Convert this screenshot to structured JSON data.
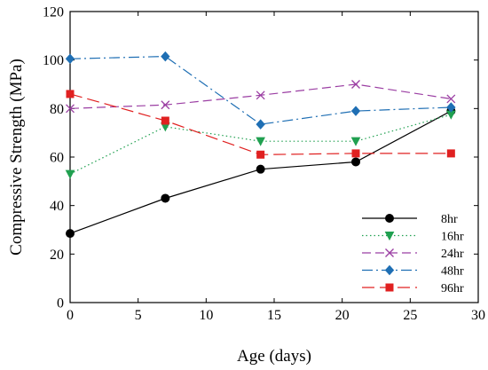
{
  "chart_data": {
    "type": "line",
    "xlabel": "Age (days)",
    "ylabel": "Compressive Strength (MPa)",
    "xlim": [
      0,
      30
    ],
    "ylim": [
      0,
      120
    ],
    "xticks": [
      0,
      5,
      10,
      15,
      20,
      25,
      30
    ],
    "yticks": [
      0,
      20,
      40,
      60,
      80,
      100,
      120
    ],
    "grid": false,
    "legend_position": "bottom-right",
    "x": [
      0,
      7,
      14,
      21,
      28
    ],
    "series": [
      {
        "name": "8hr",
        "values": [
          28.5,
          43,
          55,
          58,
          79
        ],
        "color": "#000000",
        "marker": "circle",
        "dash": ""
      },
      {
        "name": "16hr",
        "values": [
          53,
          72.5,
          66.5,
          66.5,
          77.5
        ],
        "color": "#20a050",
        "marker": "triangle-down",
        "dash": "1.5,3"
      },
      {
        "name": "24hr",
        "values": [
          80,
          81.5,
          85.5,
          90,
          84
        ],
        "color": "#9b3ea3",
        "marker": "x",
        "dash": "10,5"
      },
      {
        "name": "48hr",
        "values": [
          100.5,
          101.5,
          73.5,
          79,
          80.5
        ],
        "color": "#1f6fb4",
        "marker": "diamond",
        "dash": "12,4,2,4"
      },
      {
        "name": "96hr",
        "values": [
          86,
          75,
          61,
          61.5,
          61.5
        ],
        "color": "#e02020",
        "marker": "square",
        "dash": "14,6"
      }
    ]
  }
}
